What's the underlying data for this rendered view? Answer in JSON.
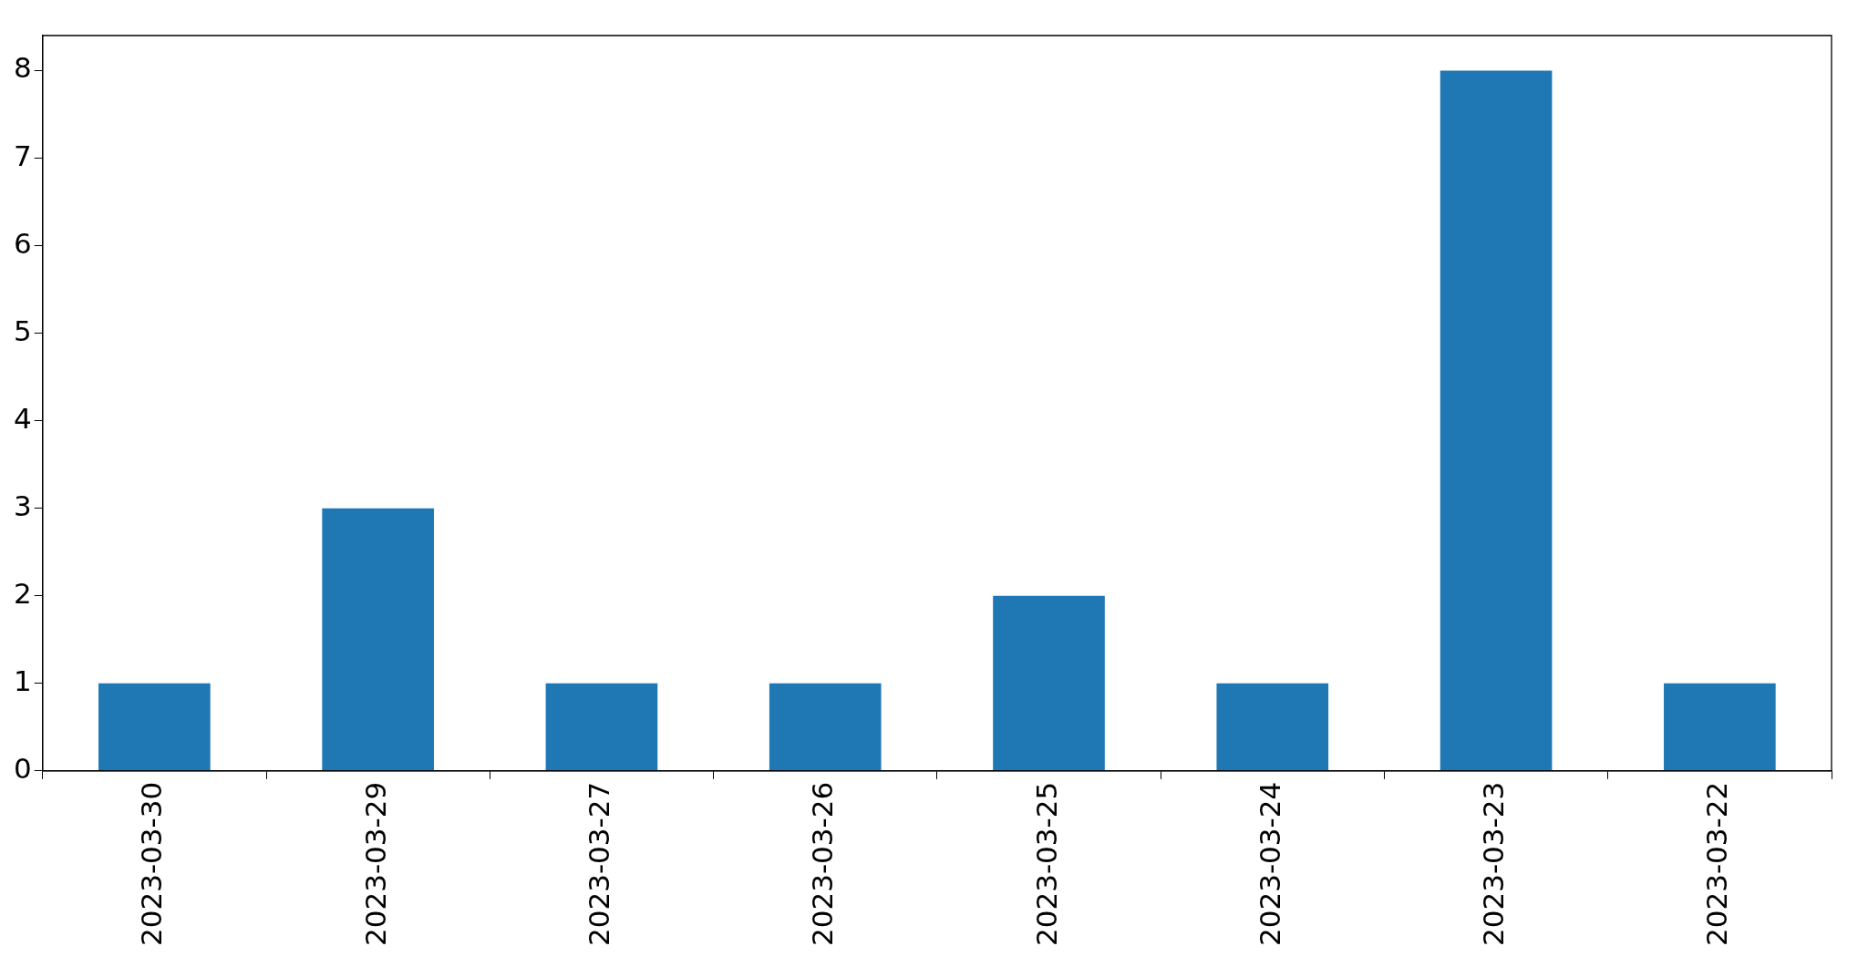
{
  "chart_data": {
    "type": "bar",
    "categories": [
      "2023-03-30",
      "2023-03-29",
      "2023-03-27",
      "2023-03-26",
      "2023-03-25",
      "2023-03-24",
      "2023-03-23",
      "2023-03-22"
    ],
    "values": [
      1,
      3,
      1,
      1,
      2,
      1,
      8,
      1
    ],
    "color": "#1f77b4",
    "ylim": [
      0,
      8.4
    ],
    "yticks": [
      0,
      1,
      2,
      3,
      4,
      5,
      6,
      7,
      8
    ],
    "grid": false,
    "legend": false
  }
}
